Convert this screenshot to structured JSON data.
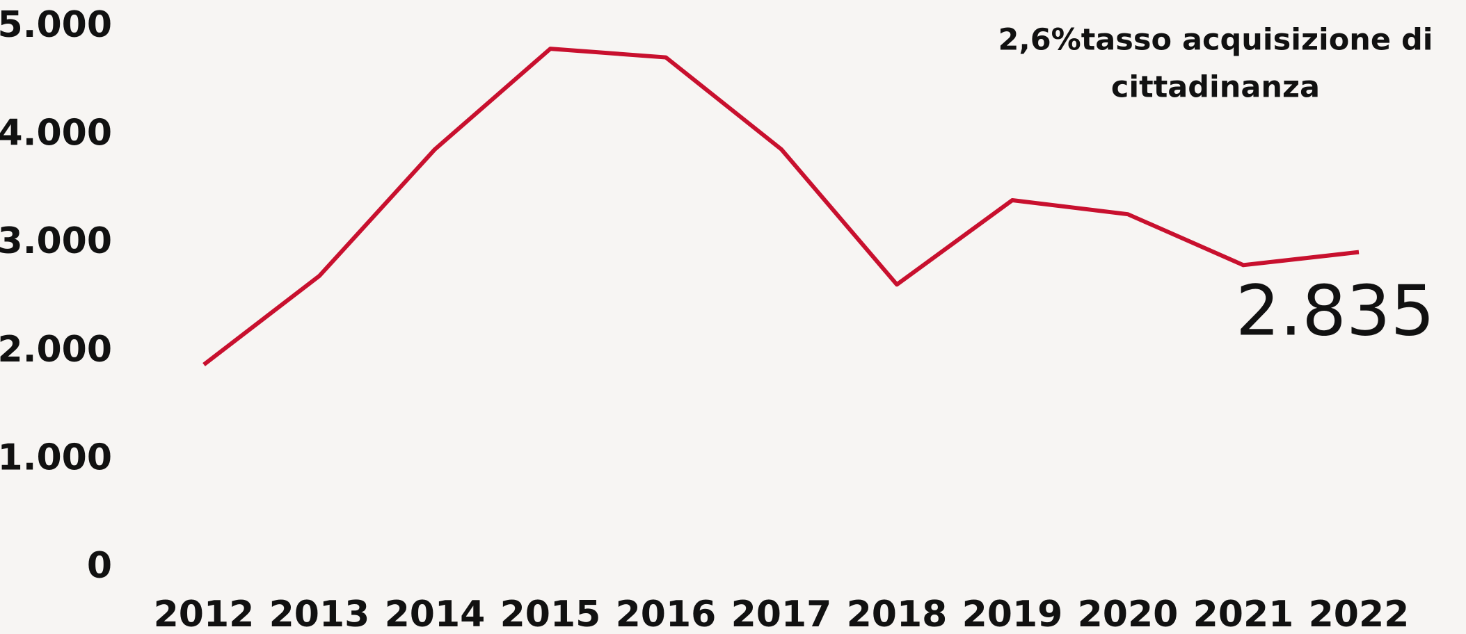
{
  "chart_data": {
    "type": "line",
    "annotation_lines": [
      "2,6%tasso acquisizione di",
      "cittadinanza"
    ],
    "value_annotation": "2.835",
    "categories": [
      "2012",
      "2013",
      "2014",
      "2015",
      "2016",
      "2017",
      "2018",
      "2019",
      "2020",
      "2021",
      "2022"
    ],
    "series": [
      {
        "color": "#c8102e",
        "values": [
          1880,
          2700,
          3870,
          4800,
          4720,
          3870,
          2620,
          3400,
          3270,
          2800,
          2920
        ]
      }
    ],
    "ylim": [
      0,
      5000
    ],
    "yticks": [
      0,
      {
        "value": 1000,
        "label": "1.000"
      },
      {
        "value": 2000,
        "label": "2.000"
      },
      {
        "value": 3000,
        "label": "3.000"
      },
      {
        "value": 4000,
        "label": "4.000"
      },
      {
        "value": 5000,
        "label": "5.000"
      }
    ],
    "grid": false
  }
}
